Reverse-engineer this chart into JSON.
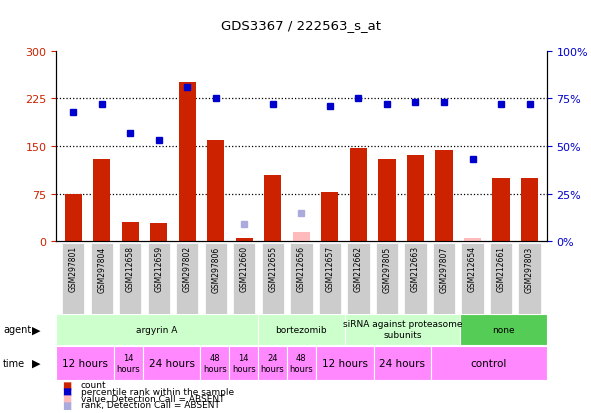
{
  "title": "GDS3367 / 222563_s_at",
  "samples": [
    "GSM297801",
    "GSM297804",
    "GSM212658",
    "GSM212659",
    "GSM297802",
    "GSM297806",
    "GSM212660",
    "GSM212655",
    "GSM212656",
    "GSM212657",
    "GSM212662",
    "GSM297805",
    "GSM212663",
    "GSM297807",
    "GSM212654",
    "GSM212661",
    "GSM297803"
  ],
  "count_values": [
    75,
    130,
    30,
    28,
    250,
    160,
    5,
    105,
    15,
    78,
    147,
    130,
    135,
    143,
    5,
    100,
    100
  ],
  "count_absent": [
    false,
    false,
    false,
    false,
    false,
    false,
    false,
    false,
    true,
    false,
    false,
    false,
    false,
    false,
    true,
    false,
    false
  ],
  "rank_values": [
    68,
    72,
    57,
    53,
    81,
    75,
    9,
    72,
    15,
    71,
    75,
    72,
    73,
    73,
    43,
    72,
    72
  ],
  "rank_absent": [
    false,
    false,
    false,
    false,
    false,
    false,
    true,
    false,
    true,
    false,
    false,
    false,
    false,
    false,
    false,
    false,
    false
  ],
  "left_ylim": [
    0,
    300
  ],
  "right_ylim": [
    0,
    100
  ],
  "left_yticks": [
    0,
    75,
    150,
    225,
    300
  ],
  "right_yticks": [
    0,
    25,
    50,
    75,
    100
  ],
  "right_yticklabels": [
    "0%",
    "25%",
    "50%",
    "75%",
    "100%"
  ],
  "agent_groups": [
    {
      "label": "argyrin A",
      "start": 0,
      "end": 7,
      "color": "#ccffcc"
    },
    {
      "label": "bortezomib",
      "start": 7,
      "end": 10,
      "color": "#ccffcc"
    },
    {
      "label": "siRNA against proteasome\nsubunits",
      "start": 10,
      "end": 14,
      "color": "#ccffcc"
    },
    {
      "label": "none",
      "start": 14,
      "end": 17,
      "color": "#55cc55"
    }
  ],
  "time_groups": [
    {
      "label": "12 hours",
      "start": 0,
      "end": 2,
      "fontsize": 7.5
    },
    {
      "label": "14\nhours",
      "start": 2,
      "end": 3,
      "fontsize": 6
    },
    {
      "label": "24 hours",
      "start": 3,
      "end": 5,
      "fontsize": 7.5
    },
    {
      "label": "48\nhours",
      "start": 5,
      "end": 6,
      "fontsize": 6
    },
    {
      "label": "14\nhours",
      "start": 6,
      "end": 7,
      "fontsize": 6
    },
    {
      "label": "24\nhours",
      "start": 7,
      "end": 8,
      "fontsize": 6
    },
    {
      "label": "48\nhours",
      "start": 8,
      "end": 9,
      "fontsize": 6
    },
    {
      "label": "12 hours",
      "start": 9,
      "end": 11,
      "fontsize": 7.5
    },
    {
      "label": "24 hours",
      "start": 11,
      "end": 13,
      "fontsize": 7.5
    },
    {
      "label": "control",
      "start": 13,
      "end": 17,
      "fontsize": 7.5
    }
  ],
  "bar_color": "#cc2200",
  "bar_absent_color": "#ffbbbb",
  "rank_color": "#0000cc",
  "rank_absent_color": "#aaaadd",
  "xlabel_color": "#cc2200",
  "ylabel_right_color": "#0000cc",
  "tick_bg_color": "#cccccc",
  "agent_light_color": "#ccffcc",
  "agent_dark_color": "#55cc55",
  "time_color": "#ff88ff"
}
